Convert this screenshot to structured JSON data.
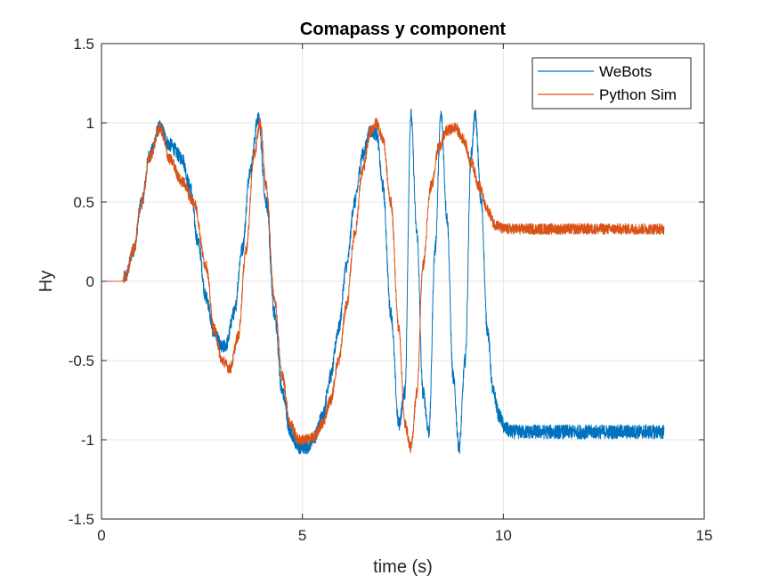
{
  "chart_data": {
    "type": "line",
    "title": "Comapass y component",
    "xlabel": "time (s)",
    "ylabel": "Hy",
    "xlim": [
      0,
      15
    ],
    "ylim": [
      -1.5,
      1.5
    ],
    "xticks": [
      0,
      5,
      10,
      15
    ],
    "yticks": [
      -1.5,
      -1,
      -0.5,
      0,
      0.5,
      1,
      1.5
    ],
    "xtick_labels": [
      "0",
      "5",
      "10",
      "15"
    ],
    "ytick_labels": [
      "-1.5",
      "-1",
      "-0.5",
      "0",
      "0.5",
      "1",
      "1.5"
    ],
    "grid": true,
    "legend_position": "top-right",
    "series": [
      {
        "name": "WeBots",
        "color": "#0072BD",
        "noise": 0.045,
        "x": [
          0,
          0.5,
          0.6,
          0.8,
          1.0,
          1.2,
          1.45,
          1.7,
          2.0,
          2.2,
          2.4,
          2.6,
          2.8,
          3.0,
          3.1,
          3.3,
          3.5,
          3.7,
          3.9,
          4.1,
          4.3,
          4.5,
          4.7,
          4.9,
          5.1,
          5.3,
          5.5,
          5.7,
          5.9,
          6.1,
          6.3,
          6.5,
          6.7,
          6.85,
          7.0,
          7.2,
          7.4,
          7.55,
          7.7,
          7.85,
          8.0,
          8.15,
          8.3,
          8.45,
          8.6,
          8.75,
          8.9,
          9.05,
          9.2,
          9.3,
          9.45,
          9.6,
          9.75,
          9.9,
          10.05,
          10.2,
          10.5,
          11,
          12,
          13,
          14
        ],
        "y": [
          0,
          0,
          0.03,
          0.2,
          0.5,
          0.8,
          0.97,
          0.86,
          0.78,
          0.6,
          0.25,
          -0.1,
          -0.32,
          -0.42,
          -0.4,
          -0.2,
          0.2,
          0.7,
          1.03,
          0.5,
          -0.2,
          -0.7,
          -0.95,
          -1.05,
          -1.05,
          -0.98,
          -0.85,
          -0.6,
          -0.3,
          0.1,
          0.5,
          0.8,
          0.95,
          0.93,
          0.6,
          -0.2,
          -0.9,
          -0.7,
          1.05,
          0.3,
          -0.7,
          -0.95,
          0.2,
          1.05,
          0.4,
          -0.6,
          -1.05,
          -0.5,
          0.8,
          1.05,
          0.5,
          -0.3,
          -0.7,
          -0.85,
          -0.93,
          -0.95,
          -0.95,
          -0.95,
          -0.95,
          -0.95,
          -0.95
        ]
      },
      {
        "name": "Python Sim",
        "color": "#D95319",
        "noise": 0.035,
        "x": [
          0,
          0.5,
          0.6,
          0.8,
          1.0,
          1.2,
          1.45,
          1.7,
          2.0,
          2.3,
          2.6,
          2.8,
          3.0,
          3.2,
          3.4,
          3.6,
          3.8,
          3.95,
          4.1,
          4.3,
          4.5,
          4.7,
          4.9,
          5.1,
          5.3,
          5.5,
          5.7,
          5.9,
          6.1,
          6.3,
          6.5,
          6.7,
          6.85,
          7.0,
          7.2,
          7.4,
          7.55,
          7.7,
          7.85,
          8.0,
          8.2,
          8.4,
          8.6,
          8.8,
          9.0,
          9.2,
          9.4,
          9.6,
          9.8,
          10.0,
          10.5,
          11,
          12,
          13,
          14
        ],
        "y": [
          0,
          0,
          0.03,
          0.2,
          0.5,
          0.78,
          0.97,
          0.77,
          0.63,
          0.5,
          0.1,
          -0.3,
          -0.5,
          -0.55,
          -0.35,
          0.2,
          0.8,
          1.0,
          0.6,
          -0.1,
          -0.6,
          -0.9,
          -1.0,
          -1.0,
          -0.98,
          -0.9,
          -0.75,
          -0.5,
          -0.15,
          0.3,
          0.7,
          0.95,
          1.0,
          0.9,
          0.5,
          -0.3,
          -0.9,
          -1.05,
          -0.7,
          0.1,
          0.6,
          0.85,
          0.95,
          0.97,
          0.9,
          0.75,
          0.6,
          0.45,
          0.36,
          0.33,
          0.33,
          0.33,
          0.33,
          0.33,
          0.33
        ]
      }
    ]
  }
}
